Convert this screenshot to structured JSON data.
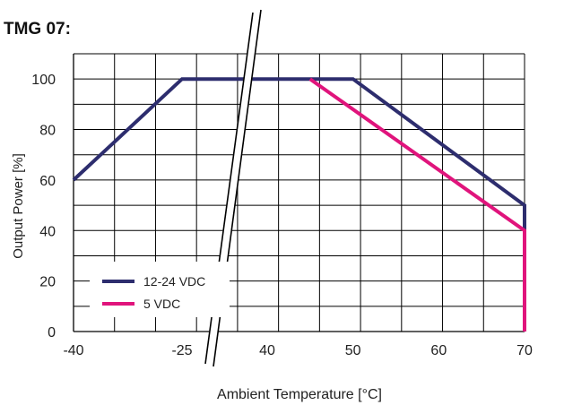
{
  "chart_data": {
    "type": "line",
    "title": "TMG 07:",
    "xlabel": "Ambient Temperature [°C]",
    "ylabel": "Output Power [%]",
    "x_ticks": [
      "-40",
      "-25",
      "40",
      "50",
      "60",
      "70"
    ],
    "y_ticks": [
      "0",
      "20",
      "40",
      "60",
      "80",
      "100"
    ],
    "ylim": [
      0,
      110
    ],
    "grid": true,
    "axis_break": true,
    "legend_position": "bottom-left",
    "series": [
      {
        "name": "12-24 VDC",
        "color": "#2d2d6e",
        "points": [
          {
            "x": -40,
            "y": 60
          },
          {
            "x": -25,
            "y": 100
          },
          {
            "x": 50,
            "y": 100
          },
          {
            "x": 70,
            "y": 50
          },
          {
            "x": 70,
            "y": 0
          }
        ]
      },
      {
        "name": "5 VDC",
        "color": "#e0147c",
        "points": [
          {
            "x": 45,
            "y": 100
          },
          {
            "x": 70,
            "y": 40
          },
          {
            "x": 70,
            "y": 0
          }
        ]
      }
    ]
  }
}
